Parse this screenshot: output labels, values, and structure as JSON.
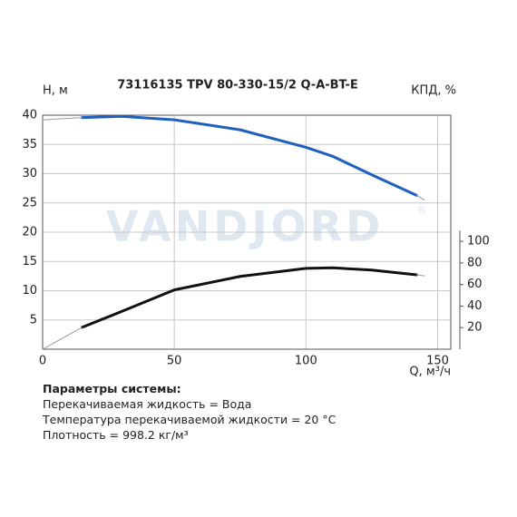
{
  "chart_data": {
    "type": "line",
    "title": "73116135 TPV 80-330-15/2 Q-A-BT-E",
    "ylabel": "H, м",
    "y2label": "КПД, %",
    "xlabel": "Q, м³/ч",
    "watermark": "VANDJORD",
    "watermark_mark": "®",
    "x": [
      0,
      15,
      30,
      50,
      75,
      100,
      110,
      125,
      142,
      145
    ],
    "series": [
      {
        "color": "#1f5fbf",
        "values": [
          null,
          39.6,
          39.8,
          39.2,
          37.5,
          34.5,
          33,
          29.8,
          26.3,
          null
        ]
      },
      {
        "color": "#9a9a9a",
        "values": [
          39.2,
          39.6,
          null,
          null,
          null,
          null,
          null,
          null,
          26.3,
          25.5
        ]
      },
      {
        "color": "#111111",
        "axis": "y2",
        "values": [
          null,
          20.3,
          35,
          55,
          67.5,
          75,
          75.5,
          73.4,
          69,
          null
        ]
      },
      {
        "color": "#9a9a9a",
        "axis": "y2",
        "values": [
          0,
          20.3,
          null,
          null,
          null,
          null,
          null,
          null,
          69,
          68
        ]
      }
    ],
    "xlim": [
      0,
      155
    ],
    "xticks": [
      0,
      50,
      100,
      150
    ],
    "ylim": [
      0,
      40
    ],
    "yticks": [
      5,
      10,
      15,
      20,
      25,
      30,
      35,
      40
    ],
    "y2lim": [
      0,
      217
    ],
    "y2ticks": [
      20,
      40,
      60,
      80,
      100
    ],
    "grid": true
  },
  "parameters": {
    "heading": "Параметры системы:",
    "lines": [
      "Перекачиваемая жидкость = Вода",
      "Температура перекачиваемой жидкости = 20 °C",
      "Плотность = 998.2 кг/м³"
    ]
  }
}
